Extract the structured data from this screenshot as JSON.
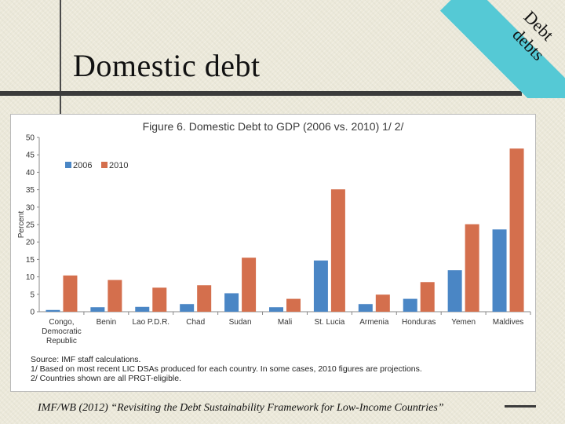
{
  "slide": {
    "title": "Domestic debt",
    "banner_line1": "Debt",
    "banner_line2": "debts",
    "citation": "IMF/WB (2012) “Revisiting the Debt Sustainability Framework for Low-Income Countries”"
  },
  "figure": {
    "notes": [
      "Source: IMF staff calculations.",
      "1/ Based on most recent LIC DSAs produced for each country. In some cases, 2010 figures are projections.",
      "2/ Countries shown are all PRGT-eligible."
    ]
  },
  "chart_data": {
    "type": "bar",
    "title": "Figure 6. Domestic Debt to GDP (2006 vs. 2010) 1/ 2/",
    "ylabel": "Percent",
    "xlabel": "",
    "ylim": [
      0,
      50
    ],
    "yticks": [
      0,
      5,
      10,
      15,
      20,
      25,
      30,
      35,
      40,
      45,
      50
    ],
    "grid": false,
    "legend_position": "top-left",
    "categories": [
      "Congo, Democratic Republic",
      "Benin",
      "Lao P.D.R.",
      "Chad",
      "Sudan",
      "Mali",
      "St. Lucia",
      "Armenia",
      "Honduras",
      "Yemen",
      "Maldives"
    ],
    "category_lines": [
      [
        "Congo,",
        "Democratic",
        "Republic"
      ],
      [
        "Benin"
      ],
      [
        "Lao P.D.R."
      ],
      [
        "Chad"
      ],
      [
        "Sudan"
      ],
      [
        "Mali"
      ],
      [
        "St. Lucia"
      ],
      [
        "Armenia"
      ],
      [
        "Honduras"
      ],
      [
        "Yemen"
      ],
      [
        "Maldives"
      ]
    ],
    "series": [
      {
        "name": "2006",
        "color": "#4a86c5",
        "values": [
          0.5,
          1.3,
          1.4,
          2.2,
          5.3,
          1.3,
          14.7,
          2.2,
          3.7,
          11.9,
          23.6
        ]
      },
      {
        "name": "2010",
        "color": "#d46f4d",
        "values": [
          10.4,
          9.1,
          6.9,
          7.6,
          15.5,
          3.7,
          35.1,
          4.9,
          8.5,
          25.1,
          46.8
        ]
      }
    ]
  }
}
